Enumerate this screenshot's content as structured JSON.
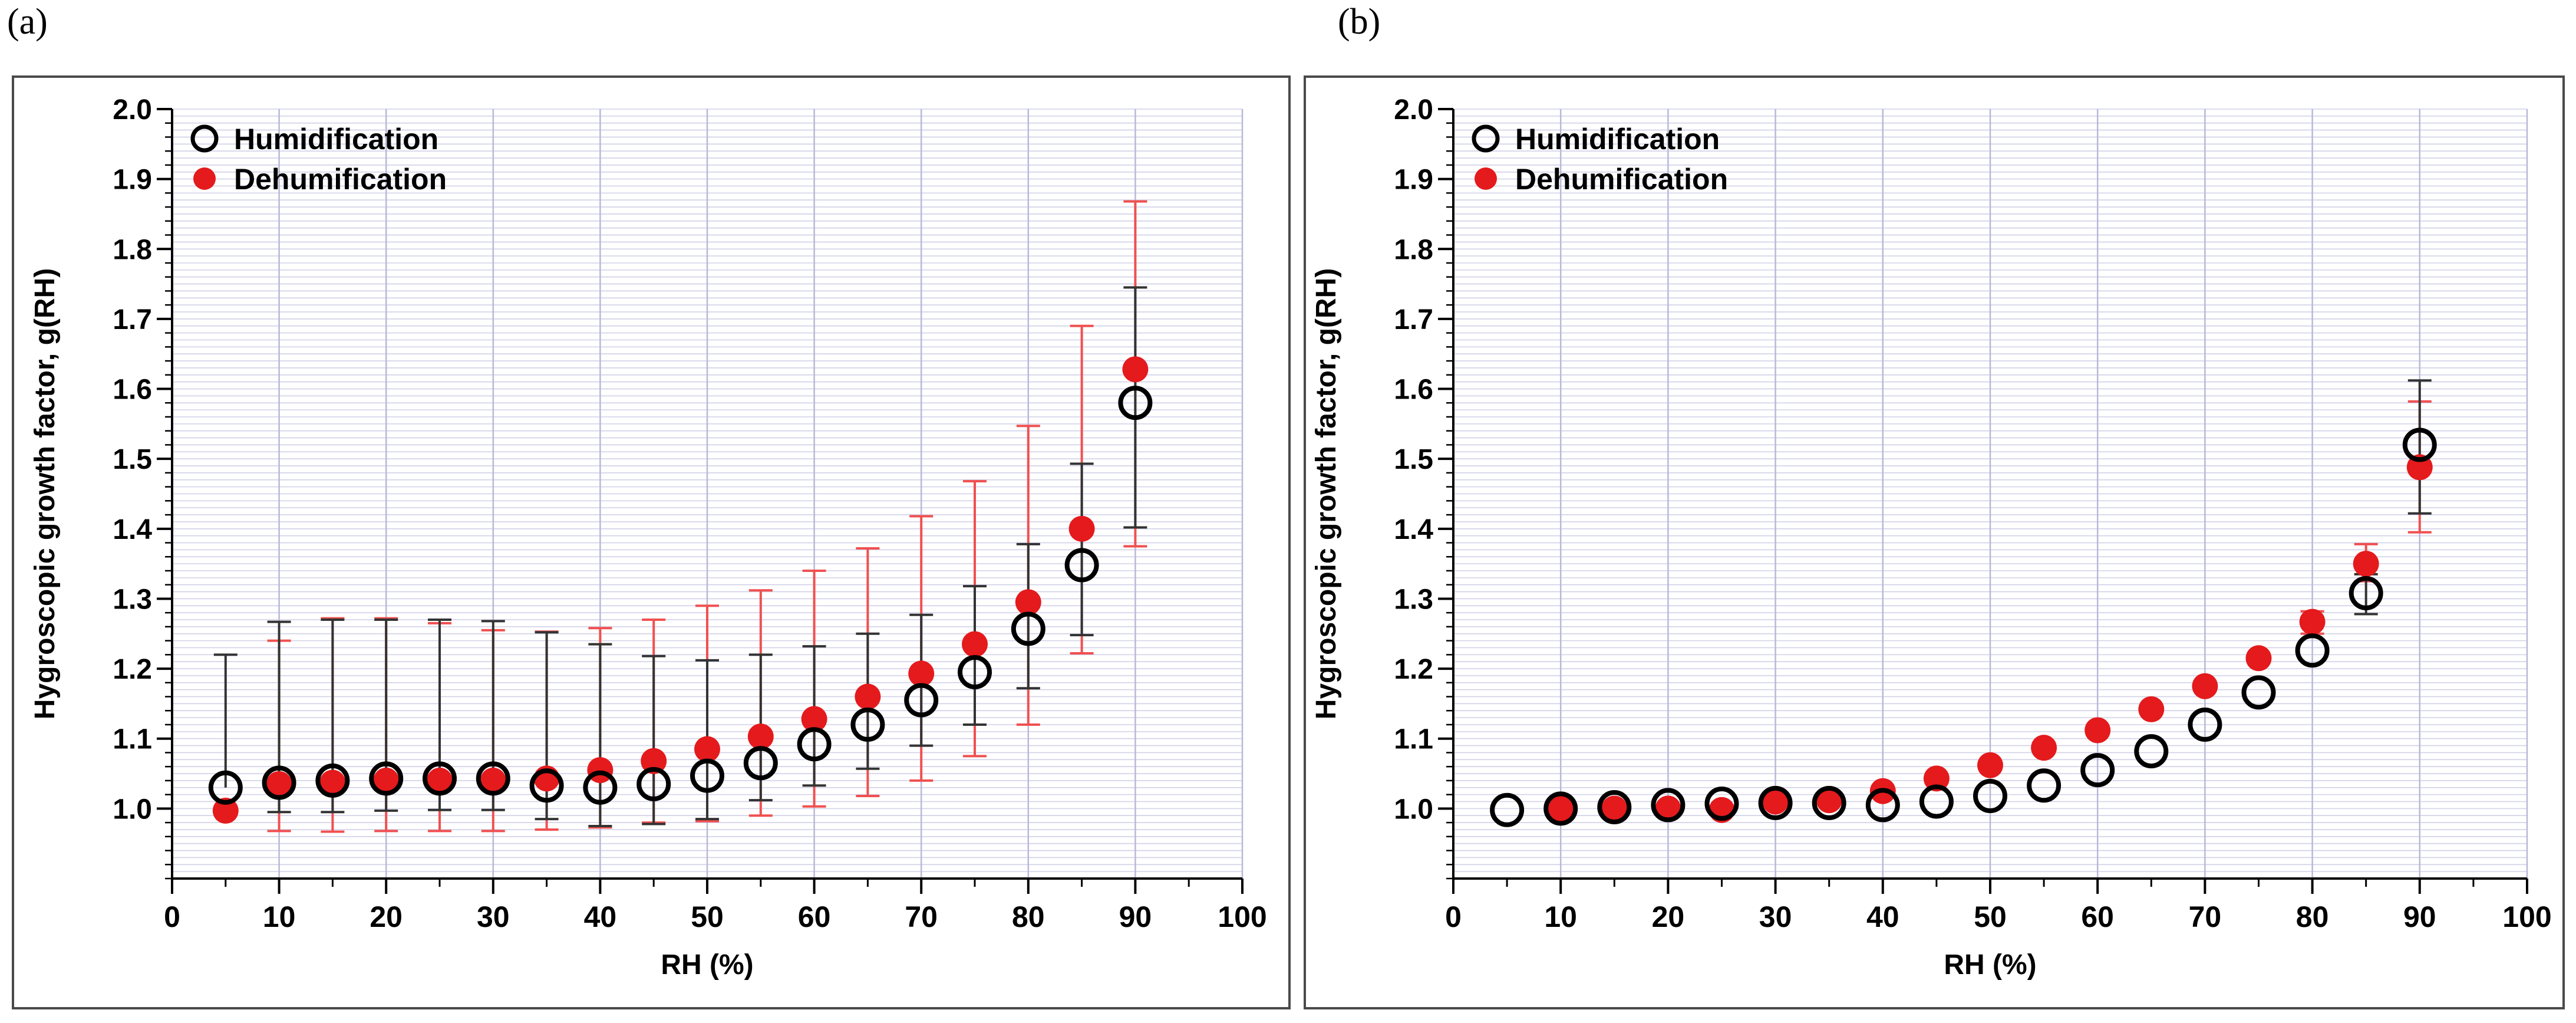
{
  "panels": [
    {
      "label": "(a)"
    },
    {
      "label": "(b)"
    }
  ],
  "chart_data": [
    {
      "type": "scatter",
      "panel": "(a)",
      "title": "",
      "xlabel": "RH (%)",
      "ylabel": "Hygroscopic growth factor, g(RH)",
      "xlim": [
        0,
        100
      ],
      "ylim": [
        0.9,
        2.0
      ],
      "xticks": [
        0,
        10,
        20,
        30,
        40,
        50,
        60,
        70,
        80,
        90,
        100
      ],
      "yticks": [
        1.0,
        1.1,
        1.2,
        1.3,
        1.4,
        1.5,
        1.6,
        1.7,
        1.8,
        1.9,
        2.0
      ],
      "legend_position": "top-left",
      "grid": true,
      "series": [
        {
          "name": "Humidification",
          "marker": "open-circle",
          "color": "#000000",
          "x": [
            5,
            10,
            15,
            20,
            25,
            30,
            35,
            40,
            45,
            50,
            55,
            60,
            65,
            70,
            75,
            80,
            85,
            90
          ],
          "y": [
            1.03,
            1.037,
            1.04,
            1.043,
            1.043,
            1.043,
            1.033,
            1.03,
            1.035,
            1.047,
            1.065,
            1.092,
            1.12,
            1.155,
            1.195,
            1.257,
            1.348,
            1.58
          ],
          "yerr_low": [
            null,
            0.995,
            0.995,
            0.997,
            0.998,
            0.998,
            0.985,
            0.975,
            0.978,
            0.985,
            1.012,
            1.033,
            1.057,
            1.09,
            1.12,
            1.172,
            1.248,
            1.402
          ],
          "yerr_high": [
            1.22,
            1.267,
            1.27,
            1.27,
            1.27,
            1.268,
            1.252,
            1.235,
            1.218,
            1.212,
            1.22,
            1.232,
            1.25,
            1.277,
            1.318,
            1.378,
            1.493,
            1.745
          ]
        },
        {
          "name": "Dehumification",
          "marker": "filled-circle",
          "color": "#e41a1c",
          "x": [
            5,
            10,
            15,
            20,
            25,
            30,
            35,
            40,
            45,
            50,
            55,
            60,
            65,
            70,
            75,
            80,
            85,
            90
          ],
          "y": [
            0.997,
            1.035,
            1.037,
            1.04,
            1.04,
            1.04,
            1.043,
            1.055,
            1.068,
            1.085,
            1.103,
            1.128,
            1.16,
            1.193,
            1.235,
            1.295,
            1.4,
            1.628
          ],
          "yerr_low": [
            null,
            0.968,
            0.967,
            0.968,
            0.968,
            0.968,
            0.97,
            0.973,
            0.98,
            0.982,
            0.99,
            1.003,
            1.018,
            1.04,
            1.075,
            1.12,
            1.222,
            1.375
          ],
          "yerr_high": [
            null,
            1.24,
            1.272,
            1.272,
            1.265,
            1.255,
            1.253,
            1.258,
            1.27,
            1.29,
            1.312,
            1.34,
            1.372,
            1.418,
            1.468,
            1.547,
            1.69,
            1.868
          ]
        }
      ]
    },
    {
      "type": "scatter",
      "panel": "(b)",
      "title": "",
      "xlabel": "RH (%)",
      "ylabel": "Hygroscopic growth factor, g(RH)",
      "xlim": [
        0,
        100
      ],
      "ylim": [
        0.9,
        2.0
      ],
      "xticks": [
        0,
        10,
        20,
        30,
        40,
        50,
        60,
        70,
        80,
        90,
        100
      ],
      "yticks": [
        1.0,
        1.1,
        1.2,
        1.3,
        1.4,
        1.5,
        1.6,
        1.7,
        1.8,
        1.9,
        2.0
      ],
      "legend_position": "top-left",
      "grid": true,
      "series": [
        {
          "name": "Humidification",
          "marker": "open-circle",
          "color": "#000000",
          "x": [
            5,
            10,
            15,
            20,
            25,
            30,
            35,
            40,
            45,
            50,
            55,
            60,
            65,
            70,
            75,
            80,
            85,
            90
          ],
          "y": [
            0.998,
            1.0,
            1.002,
            1.005,
            1.007,
            1.008,
            1.008,
            1.005,
            1.01,
            1.018,
            1.033,
            1.055,
            1.082,
            1.12,
            1.166,
            1.226,
            1.308,
            1.52
          ],
          "yerr_low": [
            null,
            null,
            null,
            null,
            null,
            null,
            null,
            null,
            null,
            null,
            null,
            null,
            null,
            null,
            null,
            null,
            1.278,
            1.422
          ],
          "yerr_high": [
            null,
            null,
            null,
            null,
            null,
            null,
            null,
            null,
            null,
            null,
            null,
            null,
            null,
            null,
            null,
            null,
            1.335,
            1.612
          ]
        },
        {
          "name": "Dehumification",
          "marker": "filled-circle",
          "color": "#e41a1c",
          "x": [
            10,
            15,
            20,
            25,
            30,
            35,
            40,
            45,
            50,
            55,
            60,
            65,
            70,
            75,
            80,
            85,
            90
          ],
          "y": [
            1.0,
            1.0,
            1.0,
            0.998,
            1.01,
            1.012,
            1.025,
            1.043,
            1.062,
            1.087,
            1.112,
            1.142,
            1.175,
            1.215,
            1.267,
            1.35,
            1.488
          ],
          "yerr_low": [
            null,
            null,
            null,
            null,
            null,
            null,
            null,
            null,
            null,
            null,
            null,
            null,
            null,
            null,
            1.25,
            1.325,
            1.395
          ],
          "yerr_high": [
            null,
            null,
            null,
            null,
            null,
            null,
            null,
            null,
            null,
            null,
            null,
            null,
            null,
            null,
            1.282,
            1.378,
            1.582
          ]
        }
      ]
    }
  ]
}
